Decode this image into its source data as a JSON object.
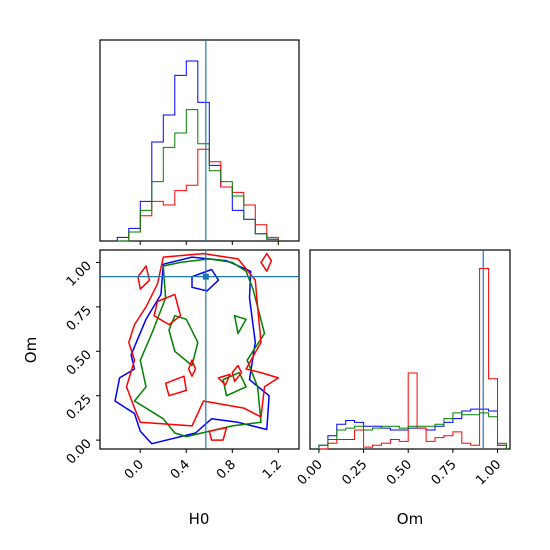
{
  "chart_data": {
    "type": "corner",
    "parameters": [
      "H0",
      "Om"
    ],
    "truth": {
      "H0": 0.57,
      "Om": 0.92
    },
    "truth_color": "#1f77b4",
    "series_colors": [
      "#0000ff",
      "#ff0000",
      "#008000"
    ],
    "axes": {
      "h0_range": [
        -0.35,
        1.38
      ],
      "om_range": [
        -0.05,
        1.07
      ],
      "h0_ticks": [
        "0.0",
        "0.4",
        "0.8",
        "1.2"
      ],
      "om_ticks": [
        "0.00",
        "0.25",
        "0.50",
        "0.75",
        "1.00"
      ],
      "xlabel_h0": "H0",
      "xlabel_om": "Om",
      "ylabel_om": "Om"
    },
    "histograms": {
      "h0_edges": [
        -0.2,
        -0.1,
        0.0,
        0.1,
        0.2,
        0.3,
        0.4,
        0.5,
        0.6,
        0.7,
        0.8,
        0.9,
        1.0,
        1.1,
        1.2
      ],
      "h0": [
        {
          "color": "#0000ff",
          "counts": [
            0.02,
            0.07,
            0.22,
            0.55,
            0.7,
            0.92,
            1.0,
            0.77,
            0.42,
            0.3,
            0.17,
            0.12,
            0.04,
            0.01
          ]
        },
        {
          "color": "#ff0000",
          "counts": [
            0.0,
            0.05,
            0.14,
            0.22,
            0.2,
            0.28,
            0.31,
            0.51,
            0.44,
            0.3,
            0.27,
            0.2,
            0.09,
            0.02
          ]
        },
        {
          "color": "#008000",
          "counts": [
            0.0,
            0.05,
            0.17,
            0.33,
            0.52,
            0.6,
            0.73,
            0.54,
            0.39,
            0.33,
            0.25,
            0.12,
            0.04,
            0.01
          ]
        }
      ],
      "om_edges": [
        0.0,
        0.05,
        0.1,
        0.15,
        0.2,
        0.25,
        0.3,
        0.35,
        0.4,
        0.45,
        0.5,
        0.55,
        0.6,
        0.65,
        0.7,
        0.75,
        0.8,
        0.85,
        0.9,
        0.95,
        1.0,
        1.05
      ],
      "om": [
        {
          "color": "#0000ff",
          "counts": [
            0.02,
            0.07,
            0.13,
            0.15,
            0.14,
            0.12,
            0.12,
            0.11,
            0.1,
            0.1,
            0.11,
            0.11,
            0.1,
            0.12,
            0.14,
            0.16,
            0.2,
            0.21,
            0.21,
            0.2,
            0.02
          ]
        },
        {
          "color": "#ff0000",
          "counts": [
            0.0,
            0.03,
            0.05,
            0.05,
            0.1,
            0.01,
            0.02,
            0.03,
            0.05,
            0.04,
            0.4,
            0.11,
            0.04,
            0.06,
            0.07,
            0.09,
            0.03,
            0.02,
            0.95,
            0.37,
            0.02
          ]
        },
        {
          "color": "#008000",
          "counts": [
            0.02,
            0.05,
            0.1,
            0.11,
            0.12,
            0.1,
            0.11,
            0.12,
            0.12,
            0.11,
            0.12,
            0.12,
            0.12,
            0.13,
            0.16,
            0.19,
            0.18,
            0.18,
            0.19,
            0.17,
            0.03
          ]
        }
      ]
    },
    "contours": [
      {
        "color": "#0000ff",
        "rings": [
          [
            [
              0.1,
              -0.02
            ],
            [
              0.48,
              0.04
            ],
            [
              0.62,
              0.12
            ],
            [
              0.85,
              0.1
            ],
            [
              1.1,
              0.06
            ],
            [
              1.12,
              0.25
            ],
            [
              0.95,
              0.34
            ],
            [
              1.0,
              0.55
            ],
            [
              0.95,
              0.8
            ],
            [
              0.96,
              0.95
            ],
            [
              0.75,
              1.01
            ],
            [
              0.45,
              1.03
            ],
            [
              0.2,
              0.99
            ],
            [
              0.18,
              0.82
            ],
            [
              0.05,
              0.68
            ],
            [
              -0.08,
              0.48
            ],
            [
              -0.05,
              0.4
            ],
            [
              -0.18,
              0.35
            ],
            [
              -0.22,
              0.22
            ],
            [
              -0.05,
              0.15
            ],
            [
              0.0,
              0.05
            ]
          ],
          [
            [
              0.45,
              0.92
            ],
            [
              0.62,
              0.96
            ],
            [
              0.68,
              0.9
            ],
            [
              0.58,
              0.84
            ],
            [
              0.45,
              0.86
            ]
          ]
        ]
      },
      {
        "color": "#008000",
        "rings": [
          [
            [
              0.4,
              0.02
            ],
            [
              0.8,
              0.08
            ],
            [
              1.05,
              0.1
            ],
            [
              1.02,
              0.3
            ],
            [
              0.93,
              0.45
            ],
            [
              1.08,
              0.6
            ],
            [
              0.98,
              0.85
            ],
            [
              0.92,
              0.95
            ],
            [
              0.8,
              1.0
            ],
            [
              0.6,
              1.02
            ],
            [
              0.35,
              1.0
            ],
            [
              0.2,
              0.98
            ],
            [
              0.22,
              0.8
            ],
            [
              0.1,
              0.6
            ],
            [
              0.0,
              0.45
            ],
            [
              0.05,
              0.3
            ],
            [
              -0.05,
              0.22
            ],
            [
              0.2,
              0.12
            ],
            [
              0.3,
              0.04
            ]
          ],
          [
            [
              0.25,
              0.62
            ],
            [
              0.3,
              0.5
            ],
            [
              0.45,
              0.42
            ],
            [
              0.5,
              0.55
            ],
            [
              0.4,
              0.68
            ],
            [
              0.3,
              0.7
            ]
          ],
          [
            [
              0.82,
              0.7
            ],
            [
              0.85,
              0.6
            ],
            [
              0.92,
              0.68
            ]
          ],
          [
            [
              0.75,
              0.25
            ],
            [
              0.92,
              0.3
            ],
            [
              0.86,
              0.38
            ],
            [
              0.72,
              0.34
            ]
          ]
        ]
      },
      {
        "color": "#ff0000",
        "rings": [
          [
            [
              0.0,
              0.1
            ],
            [
              0.45,
              0.08
            ],
            [
              0.55,
              0.22
            ],
            [
              0.9,
              0.18
            ],
            [
              1.05,
              0.13
            ],
            [
              1.08,
              0.3
            ],
            [
              1.2,
              0.35
            ],
            [
              1.05,
              0.38
            ],
            [
              0.92,
              0.4
            ],
            [
              1.05,
              0.55
            ],
            [
              1.02,
              0.75
            ],
            [
              1.0,
              0.9
            ],
            [
              0.85,
              1.02
            ],
            [
              0.55,
              1.05
            ],
            [
              0.2,
              1.03
            ],
            [
              0.15,
              0.88
            ],
            [
              0.05,
              0.75
            ],
            [
              -0.05,
              0.65
            ],
            [
              -0.1,
              0.55
            ],
            [
              -0.05,
              0.45
            ],
            [
              -0.12,
              0.3
            ],
            [
              -0.05,
              0.18
            ]
          ],
          [
            [
              0.15,
              0.78
            ],
            [
              0.3,
              0.82
            ],
            [
              0.35,
              0.7
            ],
            [
              0.25,
              0.65
            ],
            [
              0.12,
              0.7
            ]
          ],
          [
            [
              1.1,
              0.95
            ],
            [
              1.14,
              1.01
            ],
            [
              1.1,
              1.05
            ],
            [
              1.05,
              1.0
            ]
          ],
          [
            [
              0.0,
              0.85
            ],
            [
              0.08,
              0.9
            ],
            [
              0.05,
              0.98
            ],
            [
              -0.02,
              0.92
            ]
          ],
          [
            [
              0.25,
              0.25
            ],
            [
              0.4,
              0.28
            ],
            [
              0.38,
              0.36
            ],
            [
              0.22,
              0.32
            ]
          ],
          [
            [
              0.68,
              0.35
            ],
            [
              0.78,
              0.37
            ],
            [
              0.74,
              0.31
            ]
          ],
          [
            [
              0.42,
              0.4
            ],
            [
              0.45,
              0.36
            ],
            [
              0.48,
              0.4
            ],
            [
              0.45,
              0.45
            ]
          ],
          [
            [
              0.82,
              0.33
            ],
            [
              0.88,
              0.38
            ],
            [
              0.85,
              0.42
            ],
            [
              0.8,
              0.38
            ]
          ],
          [
            [
              0.6,
              0.05
            ],
            [
              0.75,
              0.07
            ],
            [
              0.72,
              0.0
            ],
            [
              0.62,
              0.0
            ]
          ]
        ]
      }
    ]
  }
}
